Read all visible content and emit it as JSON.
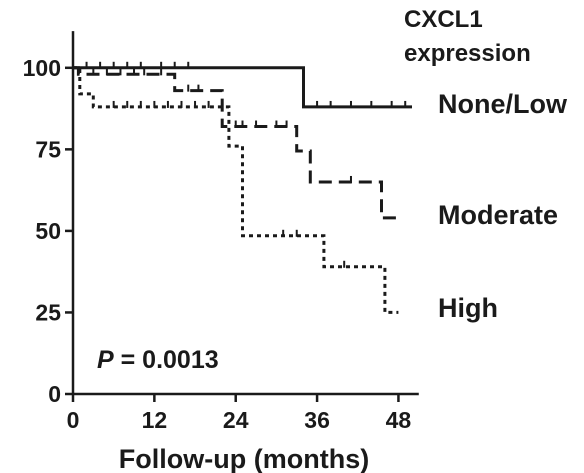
{
  "chart_data": {
    "type": "line",
    "subtype": "kaplan-meier",
    "xlabel": "Follow-up (months)",
    "ylabel": "",
    "xlim": [
      0,
      51
    ],
    "ylim": [
      0,
      110
    ],
    "xticks": [
      "0",
      "12",
      "24",
      "36",
      "48"
    ],
    "xtick_values": [
      0,
      12,
      24,
      36,
      48
    ],
    "yticks": [
      "0",
      "25",
      "50",
      "75",
      "100"
    ],
    "ytick_values": [
      0,
      25,
      50,
      75,
      100
    ],
    "grid": false,
    "legend_title": [
      "CXCL1",
      "expression"
    ],
    "legend_placement": "right, at the end of each curve",
    "annotation": {
      "italic": "P",
      "rest": " = 0.0013"
    },
    "series": [
      {
        "name": "None/Low",
        "style": "solid",
        "steps": [
          [
            0,
            100
          ],
          [
            34,
            100
          ],
          [
            34,
            88
          ],
          [
            50,
            88
          ]
        ],
        "censor_x": [
          2,
          4,
          6,
          8,
          10,
          13,
          15,
          17,
          36,
          38,
          41,
          44,
          47,
          49
        ]
      },
      {
        "name": "Moderate",
        "style": "dashed",
        "steps": [
          [
            0,
            100
          ],
          [
            0.8,
            100
          ],
          [
            0.8,
            98
          ],
          [
            15,
            98
          ],
          [
            15,
            93
          ],
          [
            22,
            93
          ],
          [
            22,
            82
          ],
          [
            33,
            82
          ],
          [
            33,
            74.5
          ],
          [
            35,
            74.5
          ],
          [
            35,
            65
          ],
          [
            45.5,
            65
          ],
          [
            45.5,
            54
          ],
          [
            48.5,
            54
          ]
        ],
        "censor_x": [
          3,
          5,
          7,
          9,
          10.5,
          13,
          17,
          18.5,
          24,
          25,
          27,
          30,
          31.5,
          41
        ]
      },
      {
        "name": "High",
        "style": "dotted",
        "steps": [
          [
            0,
            100
          ],
          [
            1,
            100
          ],
          [
            1,
            92
          ],
          [
            3,
            92
          ],
          [
            3,
            88
          ],
          [
            23,
            88
          ],
          [
            23,
            76
          ],
          [
            25,
            76
          ],
          [
            25,
            48.5
          ],
          [
            37,
            48.5
          ],
          [
            37,
            39
          ],
          [
            46,
            39
          ],
          [
            46,
            25
          ],
          [
            48,
            25
          ]
        ],
        "censor_x": [
          6,
          8,
          10,
          12,
          14,
          16,
          18,
          20,
          31,
          33,
          40
        ]
      }
    ],
    "colors": {
      "ink": "#1a1a1a",
      "background": "#ffffff"
    }
  }
}
